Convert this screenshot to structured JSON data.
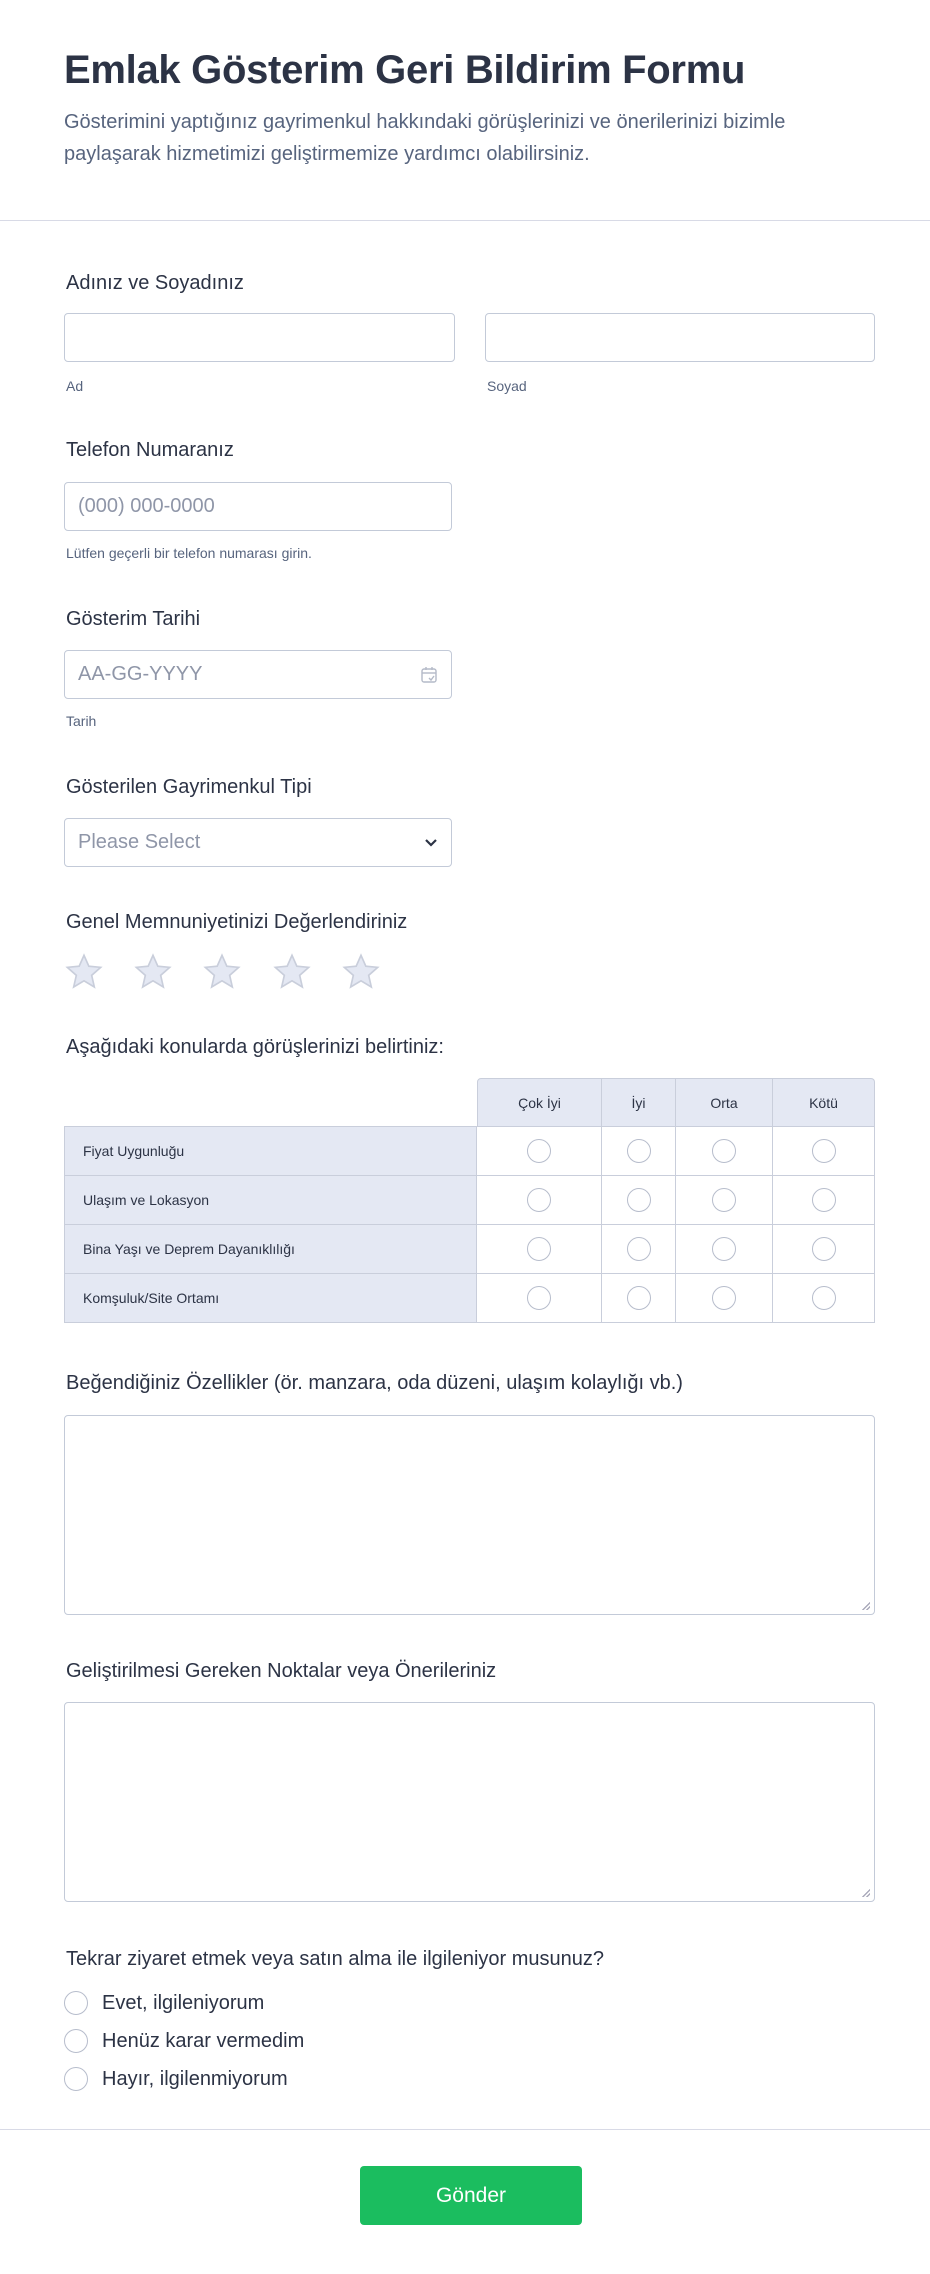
{
  "header": {
    "title": "Emlak Gösterim Geri Bildirim Formu",
    "description": "Gösterimini yaptığınız gayrimenkul hakkındaki görüşlerinizi ve önerilerinizi bizimle paylaşarak hizmetimizi geliştirmemize yardımcı olabilirsiniz."
  },
  "name": {
    "label": "Adınız ve Soyadınız",
    "first_sublabel": "Ad",
    "last_sublabel": "Soyad",
    "first_value": "",
    "last_value": ""
  },
  "phone": {
    "label": "Telefon Numaranız",
    "placeholder": "(000) 000-0000",
    "help": "Lütfen geçerli bir telefon numarası girin."
  },
  "date": {
    "label": "Gösterim Tarihi",
    "placeholder": "AA-GG-YYYY",
    "sublabel": "Tarih",
    "icon": "calendar-icon"
  },
  "property_type": {
    "label": "Gösterilen Gayrimenkul Tipi",
    "selected": "Please Select"
  },
  "rating": {
    "label": "Genel Memnuniyetinizi Değerlendiriniz",
    "max": 5,
    "value": 0
  },
  "matrix": {
    "label": "Aşağıdaki konularda görüşlerinizi belirtiniz:",
    "columns": [
      "Çok İyi",
      "İyi",
      "Orta",
      "Kötü"
    ],
    "rows": [
      "Fiyat Uygunluğu",
      "Ulaşım ve Lokasyon",
      "Bina Yaşı ve Deprem Dayanıklılığı",
      "Komşuluk/Site Ortamı"
    ]
  },
  "liked": {
    "label": "Beğendiğiniz Özellikler (ör. manzara, oda düzeni, ulaşım kolaylığı vb.)",
    "value": ""
  },
  "improve": {
    "label": "Geliştirilmesi Gereken Noktalar veya Önerileriniz",
    "value": ""
  },
  "interest": {
    "label": "Tekrar ziyaret etmek veya satın alma ile ilgileniyor musunuz?",
    "options": [
      "Evet, ilgileniyorum",
      "Henüz karar vermedim",
      "Hayır, ilgilenmiyorum"
    ]
  },
  "submit": {
    "label": "Gönder",
    "color": "#1bbd5f"
  }
}
